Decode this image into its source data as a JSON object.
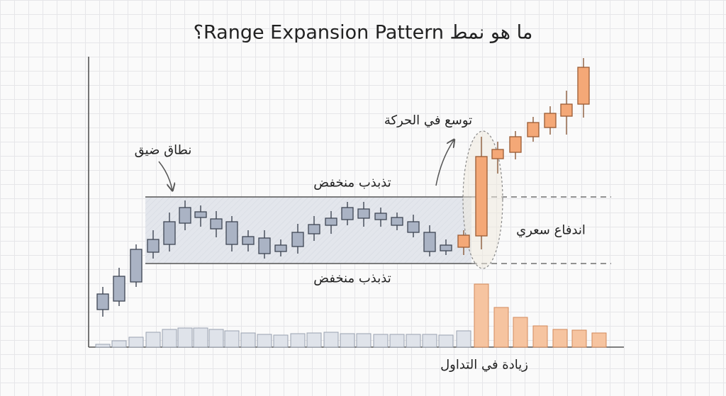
{
  "title": "ما هو نمط Range Expansion Pattern؟",
  "labels": {
    "narrow_range": "نطاق ضيق",
    "low_volatility_top": "تذبذب منخفض",
    "low_volatility_bottom": "تذبذب منخفض",
    "expansion": "توسع في الحركة",
    "price_thrust": "اندفاع سعري",
    "volume_increase": "زيادة في التداول"
  }
}
